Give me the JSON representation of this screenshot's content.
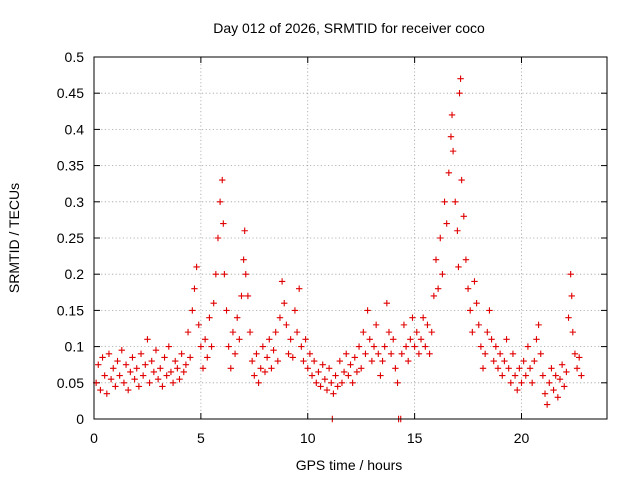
{
  "chart_data": {
    "type": "scatter",
    "title": "Day 012 of 2026, SRMTID for receiver coco",
    "xlabel": "GPS time / hours",
    "ylabel": "SRMTID / TECUs",
    "xlim": [
      0,
      24
    ],
    "ylim": [
      0,
      0.5
    ],
    "xticks": [
      0,
      5,
      10,
      15,
      20
    ],
    "xtick_labels": [
      "0",
      "5",
      "10",
      "15",
      "20"
    ],
    "yticks": [
      0,
      0.05,
      0.1,
      0.15,
      0.2,
      0.25,
      0.3,
      0.35,
      0.4,
      0.45,
      0.5
    ],
    "ytick_labels": [
      "0",
      "0.05",
      "0.1",
      "0.15",
      "0.2",
      "0.25",
      "0.3",
      "0.35",
      "0.4",
      "0.45",
      "0.5"
    ],
    "grid": true,
    "marker": "+",
    "color": "#e00000",
    "series": [
      {
        "name": "SRMTID",
        "points": [
          [
            0.1,
            0.05
          ],
          [
            0.2,
            0.075
          ],
          [
            0.3,
            0.04
          ],
          [
            0.4,
            0.085
          ],
          [
            0.5,
            0.06
          ],
          [
            0.6,
            0.035
          ],
          [
            0.7,
            0.09
          ],
          [
            0.8,
            0.055
          ],
          [
            0.9,
            0.07
          ],
          [
            1.0,
            0.045
          ],
          [
            1.1,
            0.08
          ],
          [
            1.2,
            0.06
          ],
          [
            1.3,
            0.095
          ],
          [
            1.4,
            0.05
          ],
          [
            1.5,
            0.075
          ],
          [
            1.6,
            0.04
          ],
          [
            1.7,
            0.065
          ],
          [
            1.8,
            0.085
          ],
          [
            1.9,
            0.055
          ],
          [
            2.0,
            0.07
          ],
          [
            2.1,
            0.045
          ],
          [
            2.2,
            0.09
          ],
          [
            2.3,
            0.06
          ],
          [
            2.4,
            0.075
          ],
          [
            2.5,
            0.11
          ],
          [
            2.6,
            0.05
          ],
          [
            2.7,
            0.08
          ],
          [
            2.8,
            0.065
          ],
          [
            2.9,
            0.095
          ],
          [
            3.0,
            0.055
          ],
          [
            3.1,
            0.07
          ],
          [
            3.2,
            0.045
          ],
          [
            3.3,
            0.085
          ],
          [
            3.4,
            0.06
          ],
          [
            3.5,
            0.1
          ],
          [
            3.6,
            0.065
          ],
          [
            3.7,
            0.05
          ],
          [
            3.8,
            0.08
          ],
          [
            3.9,
            0.07
          ],
          [
            4.0,
            0.055
          ],
          [
            4.1,
            0.09
          ],
          [
            4.2,
            0.065
          ],
          [
            4.3,
            0.075
          ],
          [
            4.4,
            0.12
          ],
          [
            4.5,
            0.085
          ],
          [
            4.6,
            0.15
          ],
          [
            4.7,
            0.18
          ],
          [
            4.8,
            0.21
          ],
          [
            4.9,
            0.13
          ],
          [
            5.0,
            0.1
          ],
          [
            5.1,
            0.07
          ],
          [
            5.2,
            0.11
          ],
          [
            5.3,
            0.085
          ],
          [
            5.4,
            0.14
          ],
          [
            5.5,
            0.1
          ],
          [
            5.6,
            0.16
          ],
          [
            5.7,
            0.2
          ],
          [
            5.8,
            0.25
          ],
          [
            5.9,
            0.3
          ],
          [
            6.0,
            0.33
          ],
          [
            6.05,
            0.27
          ],
          [
            6.1,
            0.2
          ],
          [
            6.2,
            0.15
          ],
          [
            6.3,
            0.1
          ],
          [
            6.4,
            0.07
          ],
          [
            6.5,
            0.12
          ],
          [
            6.6,
            0.09
          ],
          [
            6.7,
            0.14
          ],
          [
            6.8,
            0.11
          ],
          [
            6.9,
            0.17
          ],
          [
            7.0,
            0.22
          ],
          [
            7.05,
            0.26
          ],
          [
            7.1,
            0.2
          ],
          [
            7.2,
            0.17
          ],
          [
            7.3,
            0.12
          ],
          [
            7.4,
            0.08
          ],
          [
            7.5,
            0.06
          ],
          [
            7.6,
            0.09
          ],
          [
            7.7,
            0.05
          ],
          [
            7.8,
            0.07
          ],
          [
            7.9,
            0.1
          ],
          [
            8.0,
            0.065
          ],
          [
            8.1,
            0.085
          ],
          [
            8.2,
            0.11
          ],
          [
            8.3,
            0.07
          ],
          [
            8.4,
            0.095
          ],
          [
            8.5,
            0.12
          ],
          [
            8.6,
            0.08
          ],
          [
            8.7,
            0.14
          ],
          [
            8.8,
            0.19
          ],
          [
            8.9,
            0.16
          ],
          [
            9.0,
            0.13
          ],
          [
            9.1,
            0.09
          ],
          [
            9.2,
            0.11
          ],
          [
            9.3,
            0.085
          ],
          [
            9.4,
            0.15
          ],
          [
            9.5,
            0.12
          ],
          [
            9.6,
            0.18
          ],
          [
            9.7,
            0.1
          ],
          [
            9.8,
            0.08
          ],
          [
            9.9,
            0.11
          ],
          [
            10.0,
            0.07
          ],
          [
            10.1,
            0.09
          ],
          [
            10.2,
            0.06
          ],
          [
            10.3,
            0.08
          ],
          [
            10.4,
            0.05
          ],
          [
            10.5,
            0.065
          ],
          [
            10.6,
            0.045
          ],
          [
            10.7,
            0.075
          ],
          [
            10.8,
            0.055
          ],
          [
            10.9,
            0.04
          ],
          [
            11.0,
            0.07
          ],
          [
            11.1,
            0.05
          ],
          [
            11.15,
            0.0
          ],
          [
            11.2,
            0.035
          ],
          [
            11.3,
            0.06
          ],
          [
            11.4,
            0.045
          ],
          [
            11.5,
            0.08
          ],
          [
            11.6,
            0.05
          ],
          [
            11.7,
            0.065
          ],
          [
            11.8,
            0.09
          ],
          [
            11.9,
            0.06
          ],
          [
            12.0,
            0.075
          ],
          [
            12.1,
            0.05
          ],
          [
            12.2,
            0.085
          ],
          [
            12.3,
            0.065
          ],
          [
            12.4,
            0.1
          ],
          [
            12.5,
            0.07
          ],
          [
            12.6,
            0.12
          ],
          [
            12.7,
            0.09
          ],
          [
            12.8,
            0.15
          ],
          [
            12.9,
            0.11
          ],
          [
            13.0,
            0.08
          ],
          [
            13.1,
            0.1
          ],
          [
            13.2,
            0.13
          ],
          [
            13.3,
            0.09
          ],
          [
            13.4,
            0.06
          ],
          [
            13.5,
            0.08
          ],
          [
            13.6,
            0.1
          ],
          [
            13.7,
            0.16
          ],
          [
            13.8,
            0.12
          ],
          [
            13.9,
            0.09
          ],
          [
            14.0,
            0.11
          ],
          [
            14.1,
            0.07
          ],
          [
            14.2,
            0.05
          ],
          [
            14.25,
            0.0
          ],
          [
            14.35,
            0.0
          ],
          [
            14.4,
            0.09
          ],
          [
            14.5,
            0.13
          ],
          [
            14.6,
            0.1
          ],
          [
            14.7,
            0.08
          ],
          [
            14.8,
            0.11
          ],
          [
            14.9,
            0.14
          ],
          [
            15.0,
            0.1
          ],
          [
            15.1,
            0.12
          ],
          [
            15.2,
            0.09
          ],
          [
            15.3,
            0.11
          ],
          [
            15.4,
            0.14
          ],
          [
            15.5,
            0.1
          ],
          [
            15.6,
            0.13
          ],
          [
            15.7,
            0.09
          ],
          [
            15.8,
            0.12
          ],
          [
            15.9,
            0.17
          ],
          [
            16.0,
            0.22
          ],
          [
            16.1,
            0.18
          ],
          [
            16.2,
            0.25
          ],
          [
            16.3,
            0.2
          ],
          [
            16.4,
            0.3
          ],
          [
            16.5,
            0.27
          ],
          [
            16.6,
            0.34
          ],
          [
            16.7,
            0.39
          ],
          [
            16.75,
            0.42
          ],
          [
            16.8,
            0.37
          ],
          [
            16.9,
            0.3
          ],
          [
            17.0,
            0.26
          ],
          [
            17.05,
            0.21
          ],
          [
            17.1,
            0.45
          ],
          [
            17.15,
            0.47
          ],
          [
            17.2,
            0.33
          ],
          [
            17.3,
            0.28
          ],
          [
            17.4,
            0.22
          ],
          [
            17.5,
            0.18
          ],
          [
            17.6,
            0.15
          ],
          [
            17.7,
            0.12
          ],
          [
            17.8,
            0.19
          ],
          [
            17.9,
            0.16
          ],
          [
            18.0,
            0.13
          ],
          [
            18.1,
            0.1
          ],
          [
            18.2,
            0.07
          ],
          [
            18.3,
            0.09
          ],
          [
            18.4,
            0.12
          ],
          [
            18.5,
            0.15
          ],
          [
            18.6,
            0.11
          ],
          [
            18.7,
            0.08
          ],
          [
            18.8,
            0.1
          ],
          [
            18.9,
            0.07
          ],
          [
            19.0,
            0.09
          ],
          [
            19.1,
            0.06
          ],
          [
            19.2,
            0.08
          ],
          [
            19.3,
            0.11
          ],
          [
            19.4,
            0.07
          ],
          [
            19.5,
            0.05
          ],
          [
            19.6,
            0.09
          ],
          [
            19.7,
            0.06
          ],
          [
            19.8,
            0.04
          ],
          [
            19.9,
            0.07
          ],
          [
            20.0,
            0.05
          ],
          [
            20.1,
            0.08
          ],
          [
            20.2,
            0.06
          ],
          [
            20.3,
            0.1
          ],
          [
            20.4,
            0.07
          ],
          [
            20.5,
            0.05
          ],
          [
            20.6,
            0.08
          ],
          [
            20.7,
            0.11
          ],
          [
            20.8,
            0.13
          ],
          [
            20.9,
            0.09
          ],
          [
            21.0,
            0.06
          ],
          [
            21.1,
            0.035
          ],
          [
            21.2,
            0.02
          ],
          [
            21.3,
            0.05
          ],
          [
            21.4,
            0.07
          ],
          [
            21.5,
            0.04
          ],
          [
            21.6,
            0.06
          ],
          [
            21.7,
            0.03
          ],
          [
            21.8,
            0.055
          ],
          [
            21.9,
            0.075
          ],
          [
            22.0,
            0.045
          ],
          [
            22.1,
            0.065
          ],
          [
            22.2,
            0.14
          ],
          [
            22.3,
            0.2
          ],
          [
            22.35,
            0.17
          ],
          [
            22.4,
            0.12
          ],
          [
            22.5,
            0.09
          ],
          [
            22.6,
            0.07
          ],
          [
            22.7,
            0.085
          ],
          [
            22.8,
            0.06
          ]
        ]
      }
    ]
  }
}
